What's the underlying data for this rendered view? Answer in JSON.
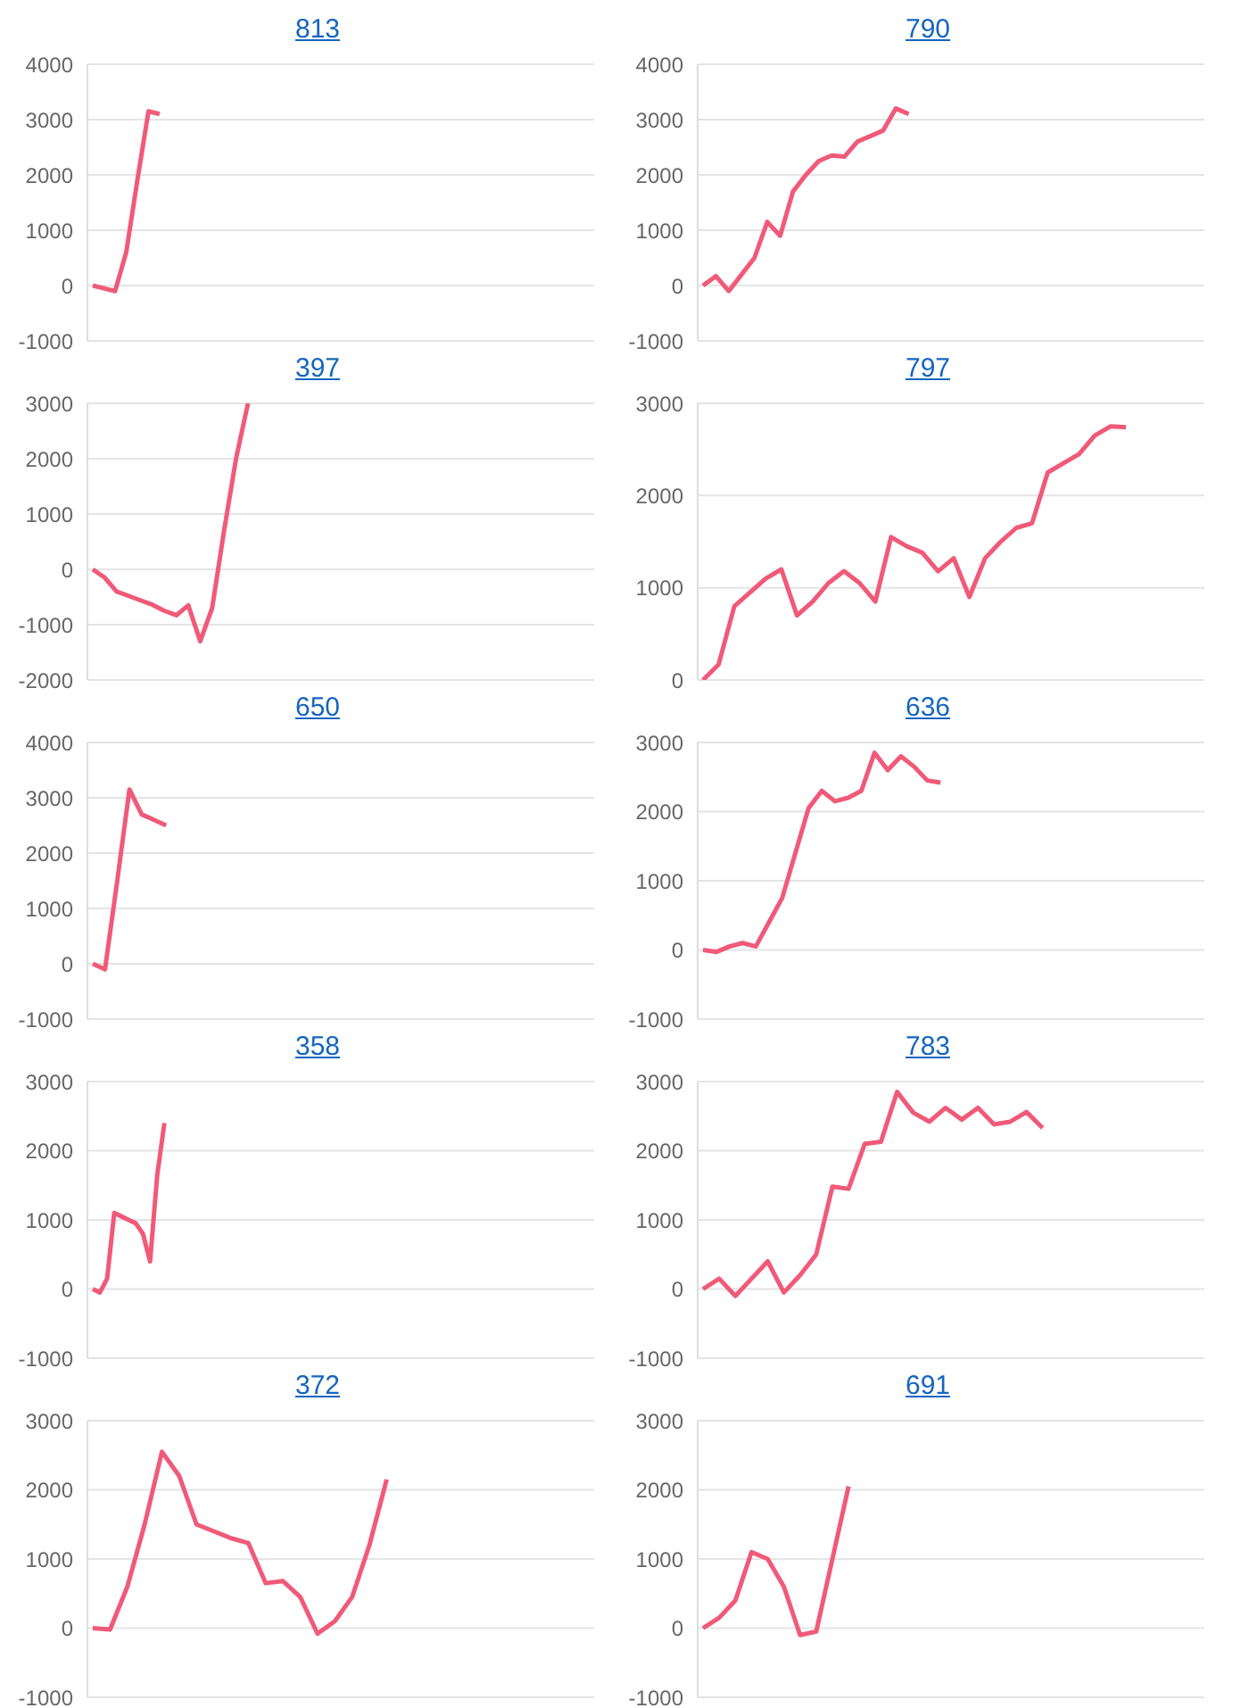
{
  "chart_data": [
    {
      "type": "line",
      "title": "813",
      "categories": [
        null,
        null,
        null,
        null,
        null,
        null,
        null,
        null,
        null,
        null,
        null,
        null,
        null,
        null,
        null,
        null,
        null,
        null,
        null,
        null,
        null,
        null,
        null,
        null,
        null,
        null,
        null,
        null,
        null,
        null,
        null,
        null,
        null,
        null,
        null,
        null,
        null,
        null,
        null,
        null,
        null,
        null,
        null,
        null,
        null,
        null
      ],
      "series": [
        {
          "color": "#f05a78",
          "values": [
            0,
            -50,
            -100,
            600,
            1900,
            3150,
            3100,
            null,
            null,
            null,
            null,
            null,
            null,
            null,
            null,
            null,
            null,
            null,
            null,
            null,
            null,
            null,
            null,
            null,
            null,
            null,
            null,
            null,
            null,
            null,
            null,
            null,
            null,
            null,
            null,
            null,
            null,
            null,
            null,
            null,
            null,
            null,
            null,
            null,
            null,
            null
          ]
        }
      ],
      "ylim": [
        -1000,
        4000
      ],
      "yticks": [
        -1000,
        0,
        1000,
        2000,
        3000,
        4000
      ],
      "grid": "y",
      "tick_labels": "y",
      "marker": "none",
      "legend": false
    },
    {
      "type": "line",
      "title": "790",
      "categories": [
        null,
        null,
        null,
        null,
        null,
        null,
        null,
        null,
        null,
        null,
        null,
        null,
        null,
        null,
        null,
        null,
        null,
        null,
        null,
        null,
        null,
        null,
        null,
        null,
        null,
        null,
        null,
        null,
        null,
        null,
        null,
        null,
        null,
        null,
        null,
        null,
        null,
        null,
        null,
        null
      ],
      "series": [
        {
          "color": "#f05a78",
          "values": [
            0,
            170,
            -100,
            200,
            500,
            1150,
            900,
            1700,
            2000,
            2250,
            2350,
            2330,
            2600,
            2700,
            2800,
            3200,
            3100,
            null,
            null,
            null,
            null,
            null,
            null,
            null,
            null,
            null,
            null,
            null,
            null,
            null,
            null,
            null,
            null,
            null,
            null,
            null,
            null,
            null,
            null,
            null
          ]
        }
      ],
      "ylim": [
        -1000,
        4000
      ],
      "yticks": [
        -1000,
        0,
        1000,
        2000,
        3000,
        4000
      ],
      "grid": "y",
      "tick_labels": "y",
      "marker": "none",
      "legend": false
    },
    {
      "type": "line",
      "title": "397",
      "categories": [
        null,
        null,
        null,
        null,
        null,
        null,
        null,
        null,
        null,
        null,
        null,
        null,
        null,
        null,
        null,
        null,
        null,
        null,
        null,
        null,
        null,
        null,
        null,
        null,
        null,
        null,
        null,
        null,
        null,
        null,
        null,
        null,
        null,
        null,
        null,
        null,
        null,
        null,
        null,
        null,
        null,
        null,
        null
      ],
      "series": [
        {
          "color": "#f05a78",
          "values": [
            0,
            -150,
            -400,
            -480,
            -560,
            -640,
            -750,
            -830,
            -650,
            -1300,
            -700,
            700,
            2000,
            3000,
            null,
            null,
            null,
            null,
            null,
            null,
            null,
            null,
            null,
            null,
            null,
            null,
            null,
            null,
            null,
            null,
            null,
            null,
            null,
            null,
            null,
            null,
            null,
            null,
            null,
            null,
            null,
            null,
            null
          ]
        }
      ],
      "ylim": [
        -2000,
        3000
      ],
      "yticks": [
        -2000,
        -1000,
        0,
        1000,
        2000,
        3000
      ],
      "grid": "y",
      "tick_labels": "y",
      "marker": "none",
      "legend": false
    },
    {
      "type": "line",
      "title": "797",
      "categories": [
        null,
        null,
        null,
        null,
        null,
        null,
        null,
        null,
        null,
        null,
        null,
        null,
        null,
        null,
        null,
        null,
        null,
        null,
        null,
        null,
        null,
        null,
        null,
        null,
        null,
        null,
        null,
        null,
        null,
        null,
        null,
        null,
        null
      ],
      "series": [
        {
          "color": "#f05a78",
          "values": [
            0,
            170,
            800,
            950,
            1100,
            1200,
            700,
            850,
            1050,
            1180,
            1050,
            850,
            1550,
            1450,
            1380,
            1180,
            1320,
            900,
            1320,
            1500,
            1650,
            1700,
            2250,
            2350,
            2450,
            2650,
            2750,
            2740,
            null,
            null,
            null,
            null,
            null
          ]
        }
      ],
      "ylim": [
        0,
        3000
      ],
      "yticks": [
        0,
        1000,
        2000,
        3000
      ],
      "grid": "y",
      "tick_labels": "y",
      "marker": "none",
      "legend": false
    },
    {
      "type": "line",
      "title": "650",
      "categories": [
        null,
        null,
        null,
        null,
        null,
        null,
        null,
        null,
        null,
        null,
        null,
        null,
        null,
        null,
        null,
        null,
        null,
        null,
        null,
        null,
        null,
        null,
        null,
        null,
        null,
        null,
        null,
        null,
        null,
        null,
        null,
        null,
        null,
        null,
        null,
        null,
        null,
        null,
        null,
        null,
        null,
        null
      ],
      "series": [
        {
          "color": "#f05a78",
          "values": [
            0,
            -100,
            1500,
            3150,
            2700,
            2600,
            2500,
            null,
            null,
            null,
            null,
            null,
            null,
            null,
            null,
            null,
            null,
            null,
            null,
            null,
            null,
            null,
            null,
            null,
            null,
            null,
            null,
            null,
            null,
            null,
            null,
            null,
            null,
            null,
            null,
            null,
            null,
            null,
            null,
            null,
            null,
            null
          ]
        }
      ],
      "ylim": [
        -1000,
        4000
      ],
      "yticks": [
        -1000,
        0,
        1000,
        2000,
        3000,
        4000
      ],
      "grid": "y",
      "tick_labels": "y",
      "marker": "none",
      "legend": false
    },
    {
      "type": "line",
      "title": "636",
      "categories": [
        null,
        null,
        null,
        null,
        null,
        null,
        null,
        null,
        null,
        null,
        null,
        null,
        null,
        null,
        null,
        null,
        null,
        null,
        null,
        null,
        null,
        null,
        null,
        null,
        null,
        null,
        null,
        null,
        null,
        null,
        null,
        null,
        null,
        null,
        null,
        null,
        null,
        null,
        null
      ],
      "series": [
        {
          "color": "#f05a78",
          "values": [
            0,
            -30,
            50,
            100,
            50,
            400,
            750,
            1400,
            2050,
            2300,
            2150,
            2200,
            2300,
            2850,
            2600,
            2800,
            2650,
            2450,
            2420,
            null,
            null,
            null,
            null,
            null,
            null,
            null,
            null,
            null,
            null,
            null,
            null,
            null,
            null,
            null,
            null,
            null,
            null,
            null,
            null
          ]
        }
      ],
      "ylim": [
        -1000,
        3000
      ],
      "yticks": [
        -1000,
        0,
        1000,
        2000,
        3000
      ],
      "grid": "y",
      "tick_labels": "y",
      "marker": "none",
      "legend": false
    },
    {
      "type": "line",
      "title": "358",
      "categories": [
        null,
        null,
        null,
        null,
        null,
        null,
        null,
        null,
        null,
        null,
        null,
        null,
        null,
        null,
        null,
        null,
        null,
        null,
        null,
        null,
        null,
        null,
        null,
        null,
        null,
        null,
        null,
        null,
        null,
        null,
        null,
        null,
        null,
        null,
        null,
        null,
        null,
        null,
        null,
        null,
        null,
        null,
        null,
        null,
        null,
        null,
        null,
        null,
        null,
        null,
        null,
        null,
        null,
        null,
        null,
        null,
        null,
        null,
        null,
        null,
        null,
        null,
        null,
        null,
        null,
        null,
        null,
        null,
        null,
        null,
        null
      ],
      "series": [
        {
          "color": "#f05a78",
          "values": [
            0,
            -50,
            150,
            1100,
            1050,
            1000,
            950,
            800,
            400,
            1650,
            2400,
            null,
            null,
            null,
            null,
            null,
            null,
            null,
            null,
            null,
            null,
            null,
            null,
            null,
            null,
            null,
            null,
            null,
            null,
            null,
            null,
            null,
            null,
            null,
            null,
            null,
            null,
            null,
            null,
            null,
            null,
            null,
            null,
            null,
            null,
            null,
            null,
            null,
            null,
            null,
            null,
            null,
            null,
            null,
            null,
            null,
            null,
            null,
            null,
            null,
            null,
            null,
            null,
            null,
            null,
            null,
            null,
            null,
            null,
            null,
            null
          ]
        }
      ],
      "ylim": [
        -1000,
        3000
      ],
      "yticks": [
        -1000,
        0,
        1000,
        2000,
        3000
      ],
      "grid": "y",
      "tick_labels": "y",
      "marker": "none",
      "legend": false
    },
    {
      "type": "line",
      "title": "783",
      "categories": [
        null,
        null,
        null,
        null,
        null,
        null,
        null,
        null,
        null,
        null,
        null,
        null,
        null,
        null,
        null,
        null,
        null,
        null,
        null,
        null,
        null,
        null,
        null,
        null,
        null,
        null,
        null,
        null,
        null,
        null,
        null,
        null
      ],
      "series": [
        {
          "color": "#f05a78",
          "values": [
            0,
            150,
            -100,
            150,
            400,
            -50,
            200,
            500,
            1480,
            1450,
            2100,
            2130,
            2850,
            2550,
            2420,
            2620,
            2450,
            2620,
            2380,
            2420,
            2560,
            2330,
            null,
            null,
            null,
            null,
            null,
            null,
            null,
            null,
            null,
            null
          ]
        }
      ],
      "ylim": [
        -1000,
        3000
      ],
      "yticks": [
        -1000,
        0,
        1000,
        2000,
        3000
      ],
      "grid": "y",
      "tick_labels": "y",
      "marker": "none",
      "legend": false
    },
    {
      "type": "line",
      "title": "372",
      "categories": [
        null,
        null,
        null,
        null,
        null,
        null,
        null,
        null,
        null,
        null,
        null,
        null,
        null,
        null,
        null,
        null,
        null,
        null,
        null,
        null,
        null,
        null,
        null,
        null,
        null,
        null,
        null,
        null,
        null,
        null
      ],
      "series": [
        {
          "color": "#f05a78",
          "values": [
            0,
            -20,
            600,
            1500,
            2550,
            2200,
            1500,
            1400,
            1300,
            1230,
            650,
            680,
            450,
            -80,
            100,
            450,
            1200,
            2150,
            null,
            null,
            null,
            null,
            null,
            null,
            null,
            null,
            null,
            null,
            null,
            null
          ]
        }
      ],
      "ylim": [
        -1000,
        3000
      ],
      "yticks": [
        -1000,
        0,
        1000,
        2000,
        3000
      ],
      "grid": "y",
      "tick_labels": "y",
      "marker": "none",
      "legend": false
    },
    {
      "type": "line",
      "title": "691",
      "categories": [
        null,
        null,
        null,
        null,
        null,
        null,
        null,
        null,
        null,
        null,
        null,
        null,
        null,
        null,
        null,
        null,
        null,
        null,
        null,
        null,
        null,
        null,
        null,
        null,
        null,
        null,
        null,
        null,
        null,
        null,
        null,
        null
      ],
      "series": [
        {
          "color": "#f05a78",
          "values": [
            0,
            150,
            400,
            1100,
            1000,
            600,
            -100,
            -50,
            1000,
            2050,
            null,
            null,
            null,
            null,
            null,
            null,
            null,
            null,
            null,
            null,
            null,
            null,
            null,
            null,
            null,
            null,
            null,
            null,
            null,
            null,
            null,
            null
          ]
        }
      ],
      "ylim": [
        -1000,
        3000
      ],
      "yticks": [
        -1000,
        0,
        1000,
        2000,
        3000
      ],
      "grid": "y",
      "tick_labels": "y",
      "marker": "none",
      "legend": false
    }
  ]
}
